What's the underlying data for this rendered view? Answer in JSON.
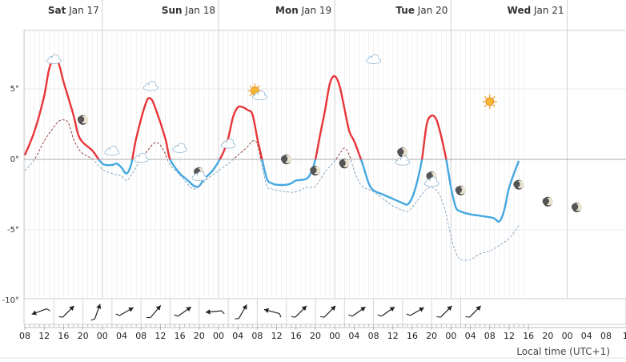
{
  "chart_data": {
    "type": "line",
    "timezone_label": "Local time (UTC+1)",
    "ylim": [
      -11.5,
      9.5
    ],
    "y_ticks": [
      {
        "value": 5,
        "label": "5°"
      },
      {
        "value": 0,
        "label": "0°"
      },
      {
        "value": -5,
        "label": "-5°"
      },
      {
        "value": -10,
        "label": "-10°"
      }
    ],
    "x_start_hour": 8,
    "x_end_hour": 110,
    "x_tick_labels": [
      "08",
      "12",
      "16",
      "20",
      "00",
      "04",
      "08",
      "12",
      "16",
      "20",
      "00",
      "04",
      "08",
      "12",
      "16",
      "20",
      "00",
      "04",
      "08",
      "12",
      "16",
      "20",
      "00",
      "04",
      "08",
      "12",
      "16",
      "20",
      "00",
      "04",
      "08",
      "1"
    ],
    "days": [
      {
        "hour": 24,
        "name": "Sat",
        "date": "Jan 17"
      },
      {
        "hour": 48,
        "name": "Sun",
        "date": "Jan 18"
      },
      {
        "hour": 72,
        "name": "Mon",
        "date": "Jan 19"
      },
      {
        "hour": 96,
        "name": "Tue",
        "date": "Jan 20"
      },
      {
        "hour": 120,
        "name": "Wed",
        "date": "Jan 21"
      }
    ],
    "colors": {
      "warm": "#e8353a",
      "cold": "#44a8e0",
      "dew": "#8a3030",
      "dew_cold": "#7f9fc0",
      "zero_line": "#aaaaaa",
      "grid": "#e8e8e8"
    },
    "series": [
      {
        "key": "temperature",
        "points": [
          [
            8,
            0.3
          ],
          [
            10,
            2
          ],
          [
            12,
            4.5
          ],
          [
            13,
            6.4
          ],
          [
            14,
            7.1
          ],
          [
            15,
            6.8
          ],
          [
            16,
            5.5
          ],
          [
            18,
            3.2
          ],
          [
            19,
            1.8
          ],
          [
            20,
            1.2
          ],
          [
            22,
            0.6
          ],
          [
            24,
            -0.3
          ],
          [
            26,
            -0.4
          ],
          [
            27,
            -0.3
          ],
          [
            28,
            -0.6
          ],
          [
            29,
            -1.0
          ],
          [
            30,
            -0.3
          ],
          [
            31,
            1.5
          ],
          [
            33,
            4.0
          ],
          [
            34,
            4.3
          ],
          [
            35,
            3.6
          ],
          [
            37,
            1.5
          ],
          [
            38,
            0
          ],
          [
            40,
            -1.0
          ],
          [
            41,
            -1.3
          ],
          [
            42,
            -1.6
          ],
          [
            43,
            -1.9
          ],
          [
            44,
            -1.9
          ],
          [
            45,
            -1.4
          ],
          [
            47,
            -0.7
          ],
          [
            49,
            0.5
          ],
          [
            50,
            1.5
          ],
          [
            51,
            3.0
          ],
          [
            52,
            3.7
          ],
          [
            53,
            3.7
          ],
          [
            54,
            3.5
          ],
          [
            55,
            3.2
          ],
          [
            56,
            1.5
          ],
          [
            57,
            0
          ],
          [
            58,
            -1.4
          ],
          [
            59,
            -1.7
          ],
          [
            60,
            -1.8
          ],
          [
            62,
            -1.8
          ],
          [
            63,
            -1.7
          ],
          [
            64,
            -1.5
          ],
          [
            66,
            -1.4
          ],
          [
            67,
            -1.0
          ],
          [
            68,
            0
          ],
          [
            69,
            1.8
          ],
          [
            70,
            3.5
          ],
          [
            71,
            5.4
          ],
          [
            72,
            5.9
          ],
          [
            73,
            5.2
          ],
          [
            74,
            3.6
          ],
          [
            75,
            2.0
          ],
          [
            76,
            1.3
          ],
          [
            77,
            0.4
          ],
          [
            78,
            -0.6
          ],
          [
            79,
            -1.7
          ],
          [
            80,
            -2.2
          ],
          [
            82,
            -2.5
          ],
          [
            84,
            -2.8
          ],
          [
            86,
            -3.1
          ],
          [
            87,
            -3.2
          ],
          [
            88,
            -2.7
          ],
          [
            89,
            -1.6
          ],
          [
            90,
            0
          ],
          [
            91,
            2.5
          ],
          [
            92,
            3.1
          ],
          [
            93,
            2.8
          ],
          [
            94,
            1.6
          ],
          [
            95,
            0
          ],
          [
            96,
            -2.0
          ],
          [
            97,
            -3.4
          ],
          [
            98,
            -3.7
          ],
          [
            100,
            -3.9
          ],
          [
            102,
            -4.0
          ],
          [
            104,
            -4.1
          ],
          [
            105,
            -4.2
          ],
          [
            106,
            -4.4
          ],
          [
            107,
            -3.6
          ],
          [
            108,
            -2.0
          ],
          [
            110,
            -0.1
          ]
        ]
      },
      {
        "key": "dew_point",
        "points": [
          [
            8,
            -0.8
          ],
          [
            10,
            0
          ],
          [
            12,
            1.3
          ],
          [
            14,
            2.3
          ],
          [
            15,
            2.7
          ],
          [
            16,
            2.8
          ],
          [
            17,
            2.6
          ],
          [
            18,
            1.5
          ],
          [
            19,
            0.8
          ],
          [
            20,
            0.4
          ],
          [
            22,
            0
          ],
          [
            24,
            -0.7
          ],
          [
            26,
            -1.0
          ],
          [
            28,
            -1.2
          ],
          [
            29,
            -1.5
          ],
          [
            30,
            -1.1
          ],
          [
            32,
            0
          ],
          [
            34,
            0.9
          ],
          [
            35,
            1.2
          ],
          [
            36,
            1.0
          ],
          [
            37,
            0.4
          ],
          [
            38,
            -0.4
          ],
          [
            40,
            -1.1
          ],
          [
            42,
            -1.9
          ],
          [
            43,
            -2.1
          ],
          [
            44,
            -1.9
          ],
          [
            46,
            -1.3
          ],
          [
            48,
            -0.8
          ],
          [
            50,
            -0.3
          ],
          [
            52,
            0.3
          ],
          [
            54,
            0.9
          ],
          [
            55,
            1.3
          ],
          [
            56,
            1.1
          ],
          [
            57,
            -0.5
          ],
          [
            58,
            -1.9
          ],
          [
            59,
            -2.1
          ],
          [
            62,
            -2.3
          ],
          [
            64,
            -2.3
          ],
          [
            66,
            -2.0
          ],
          [
            68,
            -1.9
          ],
          [
            70,
            -0.9
          ],
          [
            72,
            -0.1
          ],
          [
            73,
            0.4
          ],
          [
            74,
            0.8
          ],
          [
            75,
            0.3
          ],
          [
            76,
            -0.8
          ],
          [
            77,
            -1.6
          ],
          [
            78,
            -2.0
          ],
          [
            80,
            -2.3
          ],
          [
            84,
            -3.3
          ],
          [
            86,
            -3.6
          ],
          [
            87,
            -3.7
          ],
          [
            88,
            -3.4
          ],
          [
            90,
            -2.5
          ],
          [
            91,
            -2.1
          ],
          [
            92,
            -2.0
          ],
          [
            93,
            -2.2
          ],
          [
            94,
            -2.8
          ],
          [
            95,
            -3.9
          ],
          [
            96,
            -5.5
          ],
          [
            97,
            -6.6
          ],
          [
            98,
            -7.1
          ],
          [
            100,
            -7.1
          ],
          [
            102,
            -6.7
          ],
          [
            104,
            -6.5
          ],
          [
            106,
            -6.1
          ],
          [
            108,
            -5.6
          ],
          [
            110,
            -4.7
          ]
        ]
      }
    ],
    "weather_icons": [
      {
        "hour": 14,
        "temp": 7.1,
        "icon": "cloud-icon"
      },
      {
        "hour": 20,
        "temp": 2.8,
        "icon": "moon-icon"
      },
      {
        "hour": 26,
        "temp": 0.6,
        "icon": "cloud-icon"
      },
      {
        "hour": 32,
        "temp": 0.1,
        "icon": "cloud-icon"
      },
      {
        "hour": 34,
        "temp": 5.2,
        "icon": "cloud-icon"
      },
      {
        "hour": 40,
        "temp": 0.8,
        "icon": "cloud-icon"
      },
      {
        "hour": 44,
        "temp": -0.9,
        "icon": "moon-icon"
      },
      {
        "hour": 44,
        "temp": -1.2,
        "icon": "cloud-icon"
      },
      {
        "hour": 50,
        "temp": 1.1,
        "icon": "cloud-icon"
      },
      {
        "hour": 56,
        "temp": 4.7,
        "icon": "sun-cloud-icon"
      },
      {
        "hour": 62,
        "temp": 0,
        "icon": "moon-icon"
      },
      {
        "hour": 68,
        "temp": -0.8,
        "icon": "moon-icon"
      },
      {
        "hour": 74,
        "temp": -0.3,
        "icon": "moon-icon"
      },
      {
        "hour": 80,
        "temp": 7.1,
        "icon": "cloud-icon"
      },
      {
        "hour": 86,
        "temp": 0.5,
        "icon": "moon-icon"
      },
      {
        "hour": 86,
        "temp": -0.1,
        "icon": "cloud-icon"
      },
      {
        "hour": 92,
        "temp": -1.2,
        "icon": "moon-icon"
      },
      {
        "hour": 92,
        "temp": -1.6,
        "icon": "cloud-icon"
      },
      {
        "hour": 98,
        "temp": -2.2,
        "icon": "moon-icon"
      },
      {
        "hour": 104,
        "temp": 4.1,
        "icon": "sun-icon"
      },
      {
        "hour": 110,
        "temp": -1.8,
        "icon": "moon-icon"
      },
      {
        "hour": 116,
        "temp": -3.0,
        "icon": "moon-icon"
      },
      {
        "hour": 122,
        "temp": -3.4,
        "icon": "moon-icon"
      }
    ],
    "wind_directions_deg": [
      70,
      225,
      200,
      240,
      220,
      235,
      85,
      210,
      105,
      225,
      225,
      235,
      235,
      240,
      225,
      225
    ]
  }
}
